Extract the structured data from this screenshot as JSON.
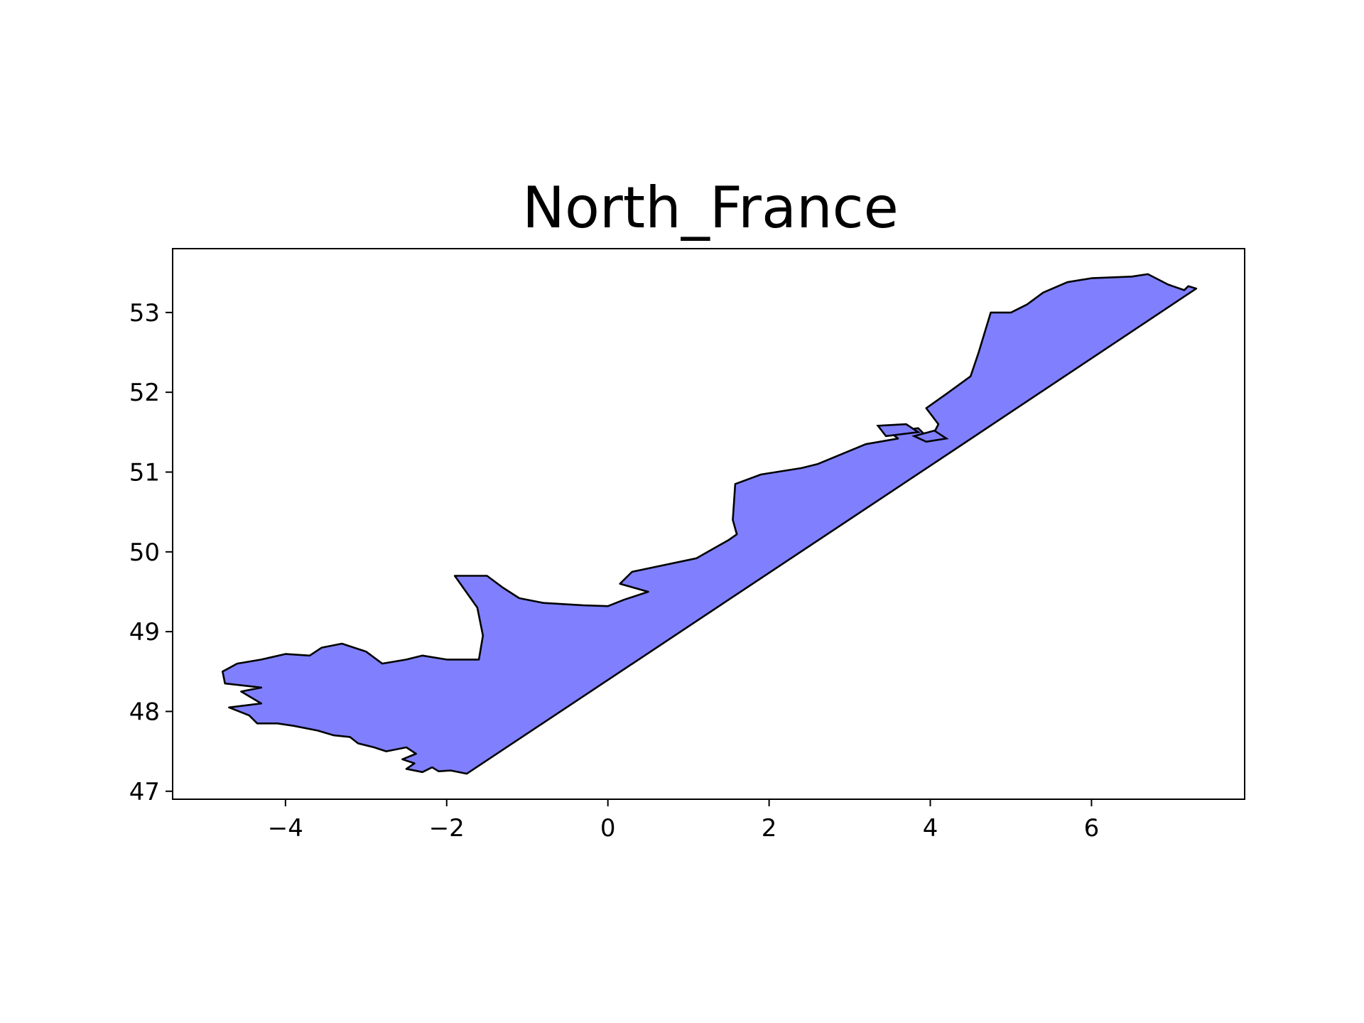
{
  "chart_data": {
    "type": "map",
    "title": "North_France",
    "xlabel": "",
    "ylabel": "",
    "xlim": [
      -5.4,
      7.9
    ],
    "ylim": [
      46.9,
      53.8
    ],
    "x_ticks": [
      -4,
      -2,
      0,
      2,
      4,
      6
    ],
    "x_tick_labels": [
      "−4",
      "−2",
      "0",
      "2",
      "4",
      "6"
    ],
    "y_ticks": [
      47,
      48,
      49,
      50,
      51,
      52,
      53
    ],
    "y_tick_labels": [
      "47",
      "48",
      "49",
      "50",
      "51",
      "52",
      "53"
    ],
    "grid": false,
    "colors": {
      "fill": "#8080ff",
      "edge": "#000000",
      "frame": "#000000"
    },
    "region": {
      "name": "North_France",
      "outline": [
        [
          -1.75,
          47.22
        ],
        [
          -1.95,
          47.26
        ],
        [
          -2.1,
          47.25
        ],
        [
          -2.18,
          47.3
        ],
        [
          -2.3,
          47.24
        ],
        [
          -2.5,
          47.28
        ],
        [
          -2.4,
          47.35
        ],
        [
          -2.55,
          47.4
        ],
        [
          -2.38,
          47.47
        ],
        [
          -2.5,
          47.55
        ],
        [
          -2.75,
          47.5
        ],
        [
          -2.9,
          47.55
        ],
        [
          -3.1,
          47.6
        ],
        [
          -3.2,
          47.68
        ],
        [
          -3.4,
          47.7
        ],
        [
          -3.6,
          47.76
        ],
        [
          -3.9,
          47.82
        ],
        [
          -4.1,
          47.85
        ],
        [
          -4.35,
          47.85
        ],
        [
          -4.45,
          47.95
        ],
        [
          -4.7,
          48.05
        ],
        [
          -4.3,
          48.1
        ],
        [
          -4.55,
          48.25
        ],
        [
          -4.3,
          48.3
        ],
        [
          -4.75,
          48.35
        ],
        [
          -4.78,
          48.5
        ],
        [
          -4.6,
          48.6
        ],
        [
          -4.3,
          48.65
        ],
        [
          -4.0,
          48.72
        ],
        [
          -3.7,
          48.7
        ],
        [
          -3.55,
          48.8
        ],
        [
          -3.3,
          48.85
        ],
        [
          -3.0,
          48.75
        ],
        [
          -2.8,
          48.6
        ],
        [
          -2.5,
          48.65
        ],
        [
          -2.3,
          48.7
        ],
        [
          -2.0,
          48.65
        ],
        [
          -1.6,
          48.65
        ],
        [
          -1.55,
          48.95
        ],
        [
          -1.62,
          49.3
        ],
        [
          -1.9,
          49.7
        ],
        [
          -1.5,
          49.7
        ],
        [
          -1.3,
          49.55
        ],
        [
          -1.1,
          49.42
        ],
        [
          -0.8,
          49.36
        ],
        [
          -0.3,
          49.33
        ],
        [
          0.0,
          49.32
        ],
        [
          0.2,
          49.4
        ],
        [
          0.5,
          49.5
        ],
        [
          0.15,
          49.6
        ],
        [
          0.3,
          49.75
        ],
        [
          1.1,
          49.92
        ],
        [
          1.5,
          50.15
        ],
        [
          1.6,
          50.22
        ],
        [
          1.55,
          50.4
        ],
        [
          1.58,
          50.85
        ],
        [
          1.9,
          50.97
        ],
        [
          2.4,
          51.05
        ],
        [
          2.6,
          51.1
        ],
        [
          3.2,
          51.35
        ],
        [
          3.6,
          51.42
        ],
        [
          3.5,
          51.5
        ],
        [
          3.85,
          51.55
        ],
        [
          4.0,
          51.4
        ],
        [
          4.1,
          51.6
        ],
        [
          3.95,
          51.8
        ],
        [
          4.2,
          51.98
        ],
        [
          4.5,
          52.2
        ],
        [
          4.6,
          52.5
        ],
        [
          4.75,
          53.0
        ],
        [
          4.9,
          53.0
        ],
        [
          5.0,
          53.0
        ],
        [
          5.2,
          53.1
        ],
        [
          5.4,
          53.25
        ],
        [
          5.7,
          53.38
        ],
        [
          6.0,
          53.43
        ],
        [
          6.5,
          53.45
        ],
        [
          6.7,
          53.48
        ],
        [
          6.95,
          53.35
        ],
        [
          7.15,
          53.28
        ],
        [
          7.2,
          53.33
        ],
        [
          7.3,
          53.3
        ],
        [
          4.3,
          51.28
        ],
        [
          -1.75,
          47.22
        ]
      ],
      "islands": [
        [
          [
            3.35,
            51.58
          ],
          [
            3.7,
            51.6
          ],
          [
            3.85,
            51.5
          ],
          [
            3.45,
            51.45
          ],
          [
            3.35,
            51.58
          ]
        ],
        [
          [
            3.8,
            51.45
          ],
          [
            4.05,
            51.52
          ],
          [
            4.2,
            51.42
          ],
          [
            3.95,
            51.38
          ],
          [
            3.8,
            51.45
          ]
        ]
      ]
    }
  }
}
